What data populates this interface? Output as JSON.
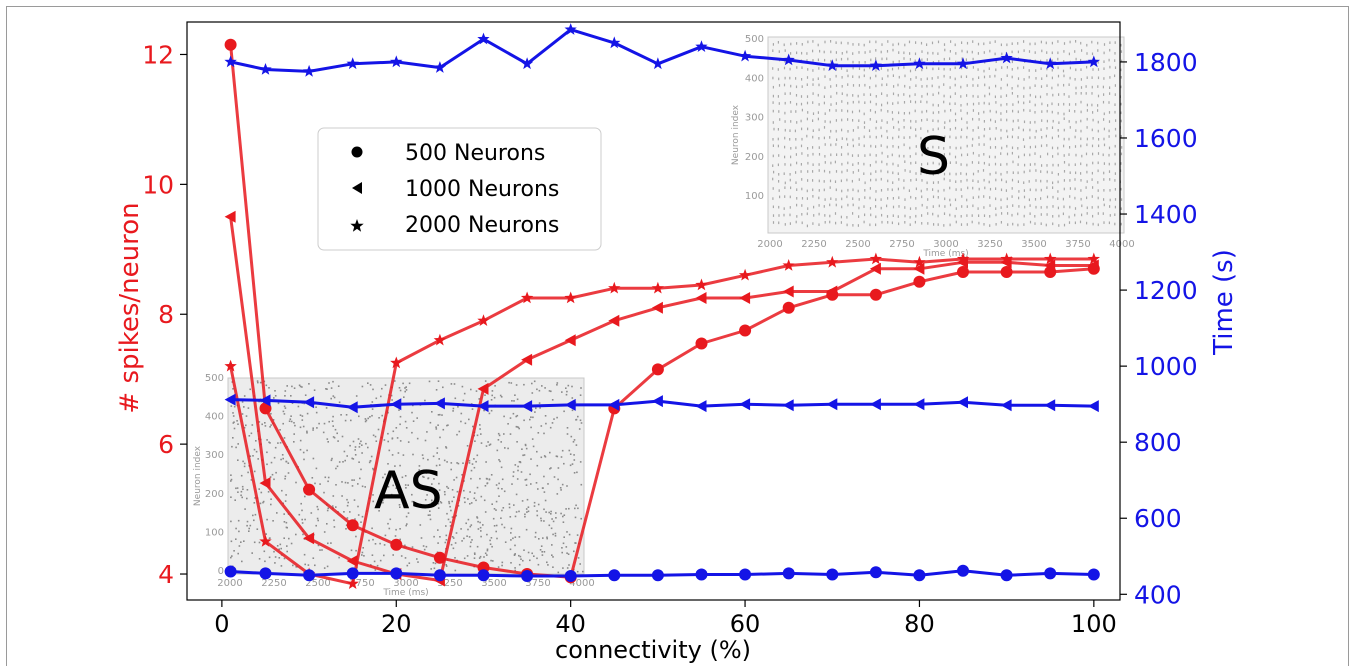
{
  "chart_data": {
    "type": "line",
    "xlabel": "connectivity (%)",
    "ylabel_left": "# spikes/neuron",
    "ylabel_right": "Time (s)",
    "xlim": [
      -4,
      103
    ],
    "ylim_left": [
      3.6,
      12.5
    ],
    "ylim_right": [
      385,
      1905
    ],
    "x_ticks": [
      "0",
      "20",
      "40",
      "60",
      "80",
      "100"
    ],
    "y_ticks_left": [
      "4",
      "6",
      "8",
      "10",
      "12"
    ],
    "y_ticks_right": [
      "400",
      "600",
      "800",
      "1000",
      "1200",
      "1400",
      "1600",
      "1800"
    ],
    "grid": false,
    "legend_position": "upper-left",
    "legend": [
      "500 Neurons",
      "1000 Neurons",
      "2000 Neurons"
    ],
    "colors": {
      "spikes": "#e8191e",
      "time": "#1414e6",
      "raster": "#8a8a8a"
    },
    "x": [
      1,
      5,
      10,
      15,
      20,
      25,
      30,
      35,
      40,
      45,
      50,
      55,
      60,
      65,
      70,
      75,
      80,
      85,
      90,
      95,
      100
    ],
    "series": [
      {
        "name": "500 Neurons",
        "axis": "left",
        "marker": "circle",
        "values": [
          12.15,
          6.55,
          5.3,
          4.75,
          4.45,
          4.25,
          4.1,
          4.0,
          3.95,
          6.55,
          7.15,
          7.55,
          7.75,
          8.1,
          8.3,
          8.3,
          8.5,
          8.65,
          8.65,
          8.65,
          8.7
        ]
      },
      {
        "name": "1000 Neurons",
        "axis": "left",
        "marker": "triangle-left",
        "values": [
          9.5,
          5.4,
          4.55,
          4.2,
          4.0,
          3.9,
          6.85,
          7.3,
          7.6,
          7.9,
          8.1,
          8.25,
          8.25,
          8.35,
          8.35,
          8.7,
          8.7,
          8.8,
          8.8,
          8.75,
          8.75
        ]
      },
      {
        "name": "2000 Neurons",
        "axis": "left",
        "marker": "star",
        "values": [
          7.2,
          4.5,
          4.0,
          3.85,
          7.25,
          7.6,
          7.9,
          8.25,
          8.25,
          8.4,
          8.4,
          8.45,
          8.6,
          8.75,
          8.8,
          8.85,
          8.8,
          8.85,
          8.85,
          8.85,
          8.85
        ]
      },
      {
        "name": "500 Neurons",
        "axis": "right",
        "marker": "circle",
        "values": [
          460,
          455,
          450,
          455,
          455,
          450,
          450,
          448,
          448,
          450,
          450,
          452,
          452,
          455,
          452,
          458,
          450,
          462,
          450,
          455,
          452
        ]
      },
      {
        "name": "1000 Neurons",
        "axis": "right",
        "marker": "triangle-left",
        "values": [
          912,
          910,
          905,
          892,
          900,
          902,
          895,
          895,
          898,
          898,
          908,
          895,
          900,
          897,
          900,
          900,
          900,
          905,
          897,
          897,
          895
        ]
      },
      {
        "name": "2000 Neurons",
        "axis": "right",
        "marker": "star",
        "values": [
          1800,
          1780,
          1775,
          1795,
          1800,
          1785,
          1860,
          1795,
          1885,
          1850,
          1795,
          1840,
          1815,
          1805,
          1790,
          1790,
          1795,
          1795,
          1810,
          1795,
          1800
        ]
      }
    ],
    "annotations": [
      "AS",
      "S"
    ],
    "insets": [
      {
        "label": "AS",
        "xlabel": "Time (ms)",
        "ylabel": "Neuron index",
        "x_ticks": [
          "2000",
          "2250",
          "2500",
          "2750",
          "3000",
          "3250",
          "3500",
          "3750",
          "4000"
        ],
        "y_ticks": [
          "0",
          "100",
          "200",
          "300",
          "400",
          "500"
        ]
      },
      {
        "label": "S",
        "xlabel": "Time (ms)",
        "ylabel": "Neuron index",
        "x_ticks": [
          "2000",
          "2250",
          "2500",
          "2750",
          "3000",
          "3250",
          "3500",
          "3750",
          "4000"
        ],
        "y_ticks": [
          "100",
          "200",
          "300",
          "400",
          "500"
        ]
      }
    ]
  }
}
